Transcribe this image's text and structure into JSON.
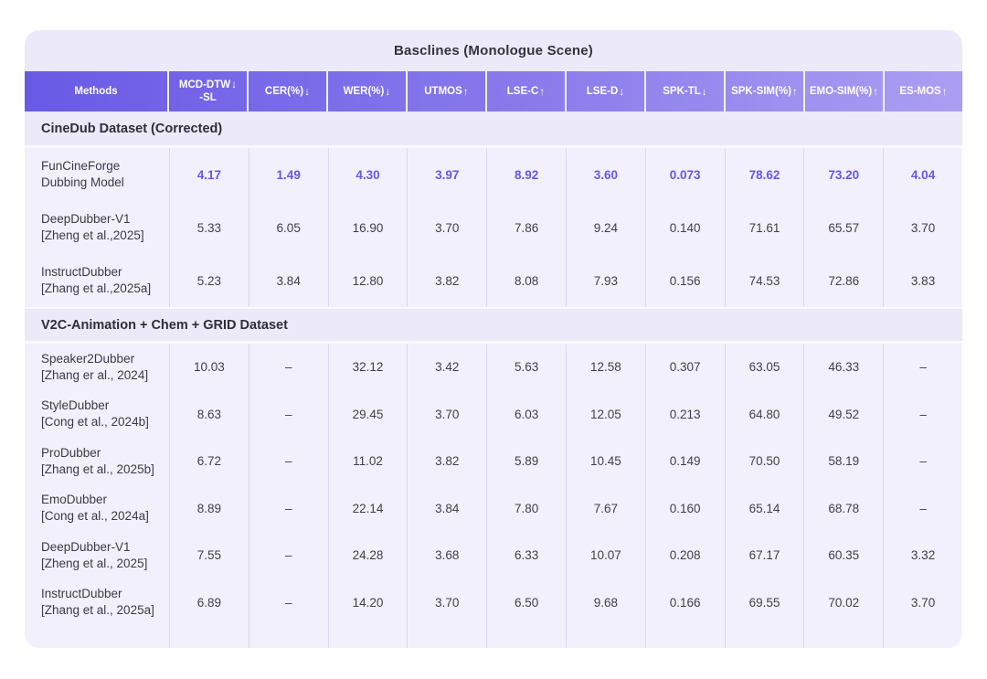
{
  "table": {
    "title": "Basclines (Monologue Scene)",
    "columns": [
      {
        "line1": "Methods",
        "line2": "",
        "arrow": ""
      },
      {
        "line1": "MCD-DTW",
        "line2": "-SL",
        "arrow": "↓"
      },
      {
        "line1": "CER(%)",
        "line2": "",
        "arrow": "↓"
      },
      {
        "line1": "WER(%)",
        "line2": "",
        "arrow": "↓"
      },
      {
        "line1": "UTMOS",
        "line2": "",
        "arrow": "↑"
      },
      {
        "line1": "LSE-C",
        "line2": "",
        "arrow": "↑"
      },
      {
        "line1": "LSE-D",
        "line2": "",
        "arrow": "↓"
      },
      {
        "line1": "SPK-TL",
        "line2": "",
        "arrow": "↓"
      },
      {
        "line1": "SPK-SIM(%)",
        "line2": "",
        "arrow": "↑"
      },
      {
        "line1": "EMO-SIM(%)",
        "line2": "",
        "arrow": "↑"
      },
      {
        "line1": "ES-MOS",
        "line2": "",
        "arrow": "↑"
      }
    ],
    "sections": [
      {
        "header": "CineDub Dataset (Corrected)",
        "rows": [
          {
            "method": "FunCineForge",
            "citation": "Dubbing Model",
            "highlight": true,
            "values": [
              "4.17",
              "1.49",
              "4.30",
              "3.97",
              "8.92",
              "3.60",
              "0.073",
              "78.62",
              "73.20",
              "4.04"
            ]
          },
          {
            "method": "DeepDubber-V1",
            "citation": "[Zheng et al.,2025]",
            "highlight": false,
            "values": [
              "5.33",
              "6.05",
              "16.90",
              "3.70",
              "7.86",
              "9.24",
              "0.140",
              "71.61",
              "65.57",
              "3.70"
            ]
          },
          {
            "method": "InstructDubber",
            "citation": "[Zhang et al.,2025a]",
            "highlight": false,
            "values": [
              "5.23",
              "3.84",
              "12.80",
              "3.82",
              "8.08",
              "7.93",
              "0.156",
              "74.53",
              "72.86",
              "3.83"
            ]
          }
        ]
      },
      {
        "header": "V2C-Animation + Chem + GRID Dataset",
        "rows": [
          {
            "method": "Speaker2Dubber",
            "citation": "[Zhang er al., 2024]",
            "highlight": false,
            "values": [
              "10.03",
              "–",
              "32.12",
              "3.42",
              "5.63",
              "12.58",
              "0.307",
              "63.05",
              "46.33",
              "–"
            ]
          },
          {
            "method": "StyleDubber",
            "citation": "[Cong et al., 2024b]",
            "highlight": false,
            "values": [
              "8.63",
              "–",
              "29.45",
              "3.70",
              "6.03",
              "12.05",
              "0.213",
              "64.80",
              "49.52",
              "–"
            ]
          },
          {
            "method": "ProDubber",
            "citation": "[Zhang et al., 2025b]",
            "highlight": false,
            "values": [
              "6.72",
              "–",
              "11.02",
              "3.82",
              "5.89",
              "10.45",
              "0.149",
              "70.50",
              "58.19",
              "–"
            ]
          },
          {
            "method": "EmoDubber",
            "citation": "[Cong et al., 2024a]",
            "highlight": false,
            "values": [
              "8.89",
              "–",
              "22.14",
              "3.84",
              "7.80",
              "7.67",
              "0.160",
              "65.14",
              "68.78",
              "–"
            ]
          },
          {
            "method": "DeepDubber-V1",
            "citation": "[Zheng et al., 2025]",
            "highlight": false,
            "values": [
              "7.55",
              "–",
              "24.28",
              "3.68",
              "6.33",
              "10.07",
              "0.208",
              "67.17",
              "60.35",
              "3.32"
            ]
          },
          {
            "method": "InstructDubber",
            "citation": "[Zhang et al., 2025a]",
            "highlight": false,
            "values": [
              "6.89",
              "–",
              "14.20",
              "3.70",
              "6.50",
              "9.68",
              "0.166",
              "69.55",
              "70.02",
              "3.70"
            ]
          }
        ]
      }
    ],
    "colors": {
      "card_background": "#ECE9F9",
      "rows_background": "#F2F0FC",
      "header_gradient_start": "#695AE6",
      "header_gradient_end": "#AB9EF2",
      "header_text": "#FFFFFF",
      "highlight_value": "#6557E9",
      "body_text": "#3F3F49",
      "column_separator": "#DCD6F4"
    }
  }
}
